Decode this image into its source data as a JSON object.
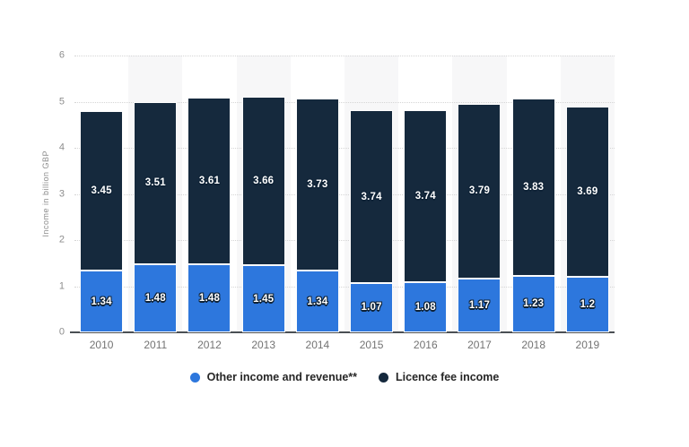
{
  "chart_data": {
    "type": "bar",
    "stacked": true,
    "title": "",
    "xlabel": "",
    "ylabel": "Income in billion GBP",
    "ylim": [
      0,
      6
    ],
    "yticks": [
      0,
      1,
      2,
      3,
      4,
      5,
      6
    ],
    "grid": true,
    "grid_style": "dotted",
    "legend_position": "bottom",
    "alternating_column_bands": true,
    "categories": [
      "2010",
      "2011",
      "2012",
      "2013",
      "2014",
      "2015",
      "2016",
      "2017",
      "2018",
      "2019"
    ],
    "series": [
      {
        "name": "Other income and revenue**",
        "color": "#2d77dd",
        "values": [
          1.34,
          1.48,
          1.48,
          1.45,
          1.34,
          1.07,
          1.08,
          1.17,
          1.23,
          1.2
        ]
      },
      {
        "name": "Licence fee income",
        "color": "#15293d",
        "values": [
          3.45,
          3.51,
          3.61,
          3.66,
          3.73,
          3.74,
          3.74,
          3.79,
          3.83,
          3.69
        ]
      }
    ],
    "value_labels": true
  },
  "colors": {
    "background": "#ffffff",
    "band": "#f7f7f8",
    "gridline": "#d5d5d5",
    "baseline": "#4a4f54",
    "axis_text": "#8d8d8d",
    "category_text": "#737373",
    "value_label_text": "#ffffff",
    "legend_text": "#262626"
  }
}
